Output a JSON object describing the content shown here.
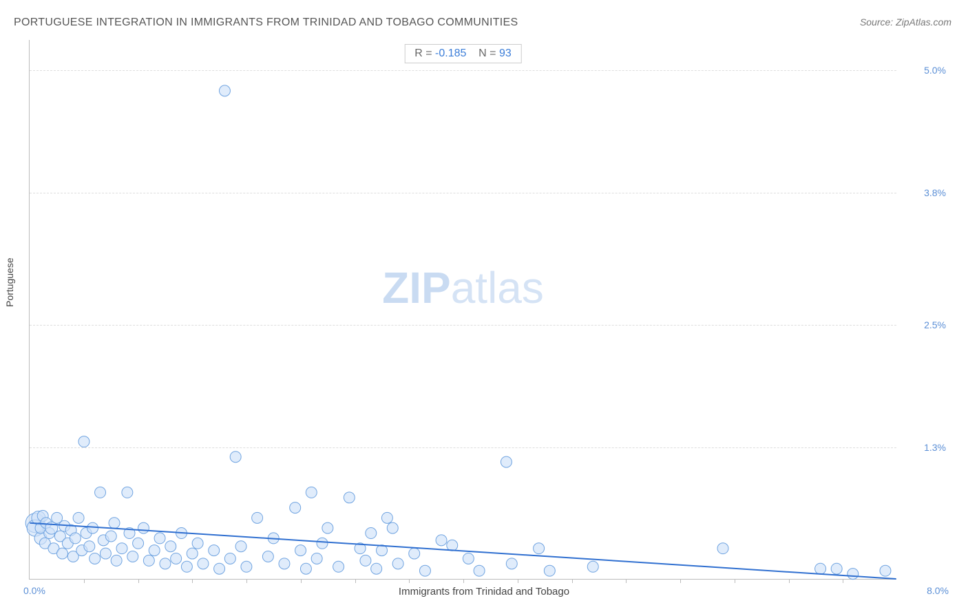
{
  "title": "PORTUGUESE INTEGRATION IN IMMIGRANTS FROM TRINIDAD AND TOBAGO COMMUNITIES",
  "source": "Source: ZipAtlas.com",
  "watermark_bold": "ZIP",
  "watermark_light": "atlas",
  "stats": {
    "r_label": "R =",
    "r_value": "-0.185",
    "n_label": "N =",
    "n_value": "93"
  },
  "chart": {
    "type": "scatter",
    "xlabel": "Immigrants from Trinidad and Tobago",
    "ylabel": "Portuguese",
    "xlim": [
      0.0,
      8.0
    ],
    "ylim": [
      0.0,
      5.3
    ],
    "x_origin_label": "0.0%",
    "x_max_label": "8.0%",
    "y_ticks": [
      1.3,
      2.5,
      3.8,
      5.0
    ],
    "y_tick_labels": [
      "1.3%",
      "2.5%",
      "3.8%",
      "5.0%"
    ],
    "x_minor_ticks": [
      0.5,
      1.0,
      1.5,
      2.0,
      2.5,
      3.0,
      3.5,
      4.0,
      4.5,
      5.0,
      5.5,
      6.0,
      6.5,
      7.0,
      7.5
    ],
    "background_color": "#ffffff",
    "grid_color": "#dddddd",
    "axis_color": "#bbbbbb",
    "tick_label_color": "#5b8fd6",
    "point_fill": "#cfe2f9",
    "point_stroke": "#6fa3e0",
    "point_fill_opacity": 0.65,
    "trend_line_color": "#2f6fd0",
    "trend_line_width": 2,
    "trend_line": {
      "x1": 0.0,
      "y1": 0.55,
      "x2": 8.0,
      "y2": 0.0
    },
    "points": [
      {
        "x": 0.05,
        "y": 0.55,
        "r": 14
      },
      {
        "x": 0.05,
        "y": 0.5,
        "r": 12
      },
      {
        "x": 0.08,
        "y": 0.6,
        "r": 10
      },
      {
        "x": 0.1,
        "y": 0.4,
        "r": 9
      },
      {
        "x": 0.1,
        "y": 0.5,
        "r": 8
      },
      {
        "x": 0.12,
        "y": 0.62,
        "r": 8
      },
      {
        "x": 0.14,
        "y": 0.35,
        "r": 8
      },
      {
        "x": 0.15,
        "y": 0.55,
        "r": 8
      },
      {
        "x": 0.18,
        "y": 0.45,
        "r": 8
      },
      {
        "x": 0.2,
        "y": 0.5,
        "r": 9
      },
      {
        "x": 0.22,
        "y": 0.3,
        "r": 8
      },
      {
        "x": 0.25,
        "y": 0.6,
        "r": 8
      },
      {
        "x": 0.28,
        "y": 0.42,
        "r": 8
      },
      {
        "x": 0.3,
        "y": 0.25,
        "r": 8
      },
      {
        "x": 0.32,
        "y": 0.52,
        "r": 8
      },
      {
        "x": 0.35,
        "y": 0.35,
        "r": 8
      },
      {
        "x": 0.38,
        "y": 0.48,
        "r": 8
      },
      {
        "x": 0.4,
        "y": 0.22,
        "r": 8
      },
      {
        "x": 0.42,
        "y": 0.4,
        "r": 8
      },
      {
        "x": 0.45,
        "y": 0.6,
        "r": 8
      },
      {
        "x": 0.48,
        "y": 0.28,
        "r": 8
      },
      {
        "x": 0.5,
        "y": 1.35,
        "r": 8
      },
      {
        "x": 0.52,
        "y": 0.45,
        "r": 8
      },
      {
        "x": 0.55,
        "y": 0.32,
        "r": 8
      },
      {
        "x": 0.58,
        "y": 0.5,
        "r": 8
      },
      {
        "x": 0.6,
        "y": 0.2,
        "r": 8
      },
      {
        "x": 0.65,
        "y": 0.85,
        "r": 8
      },
      {
        "x": 0.68,
        "y": 0.38,
        "r": 8
      },
      {
        "x": 0.7,
        "y": 0.25,
        "r": 8
      },
      {
        "x": 0.75,
        "y": 0.42,
        "r": 8
      },
      {
        "x": 0.78,
        "y": 0.55,
        "r": 8
      },
      {
        "x": 0.8,
        "y": 0.18,
        "r": 8
      },
      {
        "x": 0.85,
        "y": 0.3,
        "r": 8
      },
      {
        "x": 0.9,
        "y": 0.85,
        "r": 8
      },
      {
        "x": 0.92,
        "y": 0.45,
        "r": 8
      },
      {
        "x": 0.95,
        "y": 0.22,
        "r": 8
      },
      {
        "x": 1.0,
        "y": 0.35,
        "r": 8
      },
      {
        "x": 1.05,
        "y": 0.5,
        "r": 8
      },
      {
        "x": 1.1,
        "y": 0.18,
        "r": 8
      },
      {
        "x": 1.15,
        "y": 0.28,
        "r": 8
      },
      {
        "x": 1.2,
        "y": 0.4,
        "r": 8
      },
      {
        "x": 1.25,
        "y": 0.15,
        "r": 8
      },
      {
        "x": 1.3,
        "y": 0.32,
        "r": 8
      },
      {
        "x": 1.35,
        "y": 0.2,
        "r": 8
      },
      {
        "x": 1.4,
        "y": 0.45,
        "r": 8
      },
      {
        "x": 1.45,
        "y": 0.12,
        "r": 8
      },
      {
        "x": 1.5,
        "y": 0.25,
        "r": 8
      },
      {
        "x": 1.55,
        "y": 0.35,
        "r": 8
      },
      {
        "x": 1.6,
        "y": 0.15,
        "r": 8
      },
      {
        "x": 1.7,
        "y": 0.28,
        "r": 8
      },
      {
        "x": 1.75,
        "y": 0.1,
        "r": 8
      },
      {
        "x": 1.8,
        "y": 4.8,
        "r": 8
      },
      {
        "x": 1.85,
        "y": 0.2,
        "r": 8
      },
      {
        "x": 1.9,
        "y": 1.2,
        "r": 8
      },
      {
        "x": 1.95,
        "y": 0.32,
        "r": 8
      },
      {
        "x": 2.0,
        "y": 0.12,
        "r": 8
      },
      {
        "x": 2.1,
        "y": 0.6,
        "r": 8
      },
      {
        "x": 2.2,
        "y": 0.22,
        "r": 8
      },
      {
        "x": 2.25,
        "y": 0.4,
        "r": 8
      },
      {
        "x": 2.35,
        "y": 0.15,
        "r": 8
      },
      {
        "x": 2.45,
        "y": 0.7,
        "r": 8
      },
      {
        "x": 2.5,
        "y": 0.28,
        "r": 8
      },
      {
        "x": 2.55,
        "y": 0.1,
        "r": 8
      },
      {
        "x": 2.6,
        "y": 0.85,
        "r": 8
      },
      {
        "x": 2.65,
        "y": 0.2,
        "r": 8
      },
      {
        "x": 2.7,
        "y": 0.35,
        "r": 8
      },
      {
        "x": 2.75,
        "y": 0.5,
        "r": 8
      },
      {
        "x": 2.85,
        "y": 0.12,
        "r": 8
      },
      {
        "x": 2.95,
        "y": 0.8,
        "r": 8
      },
      {
        "x": 3.05,
        "y": 0.3,
        "r": 8
      },
      {
        "x": 3.1,
        "y": 0.18,
        "r": 8
      },
      {
        "x": 3.15,
        "y": 0.45,
        "r": 8
      },
      {
        "x": 3.2,
        "y": 0.1,
        "r": 8
      },
      {
        "x": 3.25,
        "y": 0.28,
        "r": 8
      },
      {
        "x": 3.3,
        "y": 0.6,
        "r": 8
      },
      {
        "x": 3.35,
        "y": 0.5,
        "r": 8
      },
      {
        "x": 3.4,
        "y": 0.15,
        "r": 8
      },
      {
        "x": 3.55,
        "y": 0.25,
        "r": 8
      },
      {
        "x": 3.65,
        "y": 0.08,
        "r": 8
      },
      {
        "x": 3.8,
        "y": 0.38,
        "r": 8
      },
      {
        "x": 3.9,
        "y": 0.33,
        "r": 8
      },
      {
        "x": 4.05,
        "y": 0.2,
        "r": 8
      },
      {
        "x": 4.15,
        "y": 0.08,
        "r": 8
      },
      {
        "x": 4.4,
        "y": 1.15,
        "r": 8
      },
      {
        "x": 4.45,
        "y": 0.15,
        "r": 8
      },
      {
        "x": 4.7,
        "y": 0.3,
        "r": 8
      },
      {
        "x": 4.8,
        "y": 0.08,
        "r": 8
      },
      {
        "x": 5.2,
        "y": 0.12,
        "r": 8
      },
      {
        "x": 6.4,
        "y": 0.3,
        "r": 8
      },
      {
        "x": 7.3,
        "y": 0.1,
        "r": 8
      },
      {
        "x": 7.45,
        "y": 0.1,
        "r": 8
      },
      {
        "x": 7.6,
        "y": 0.05,
        "r": 8
      },
      {
        "x": 7.9,
        "y": 0.08,
        "r": 8
      }
    ]
  }
}
